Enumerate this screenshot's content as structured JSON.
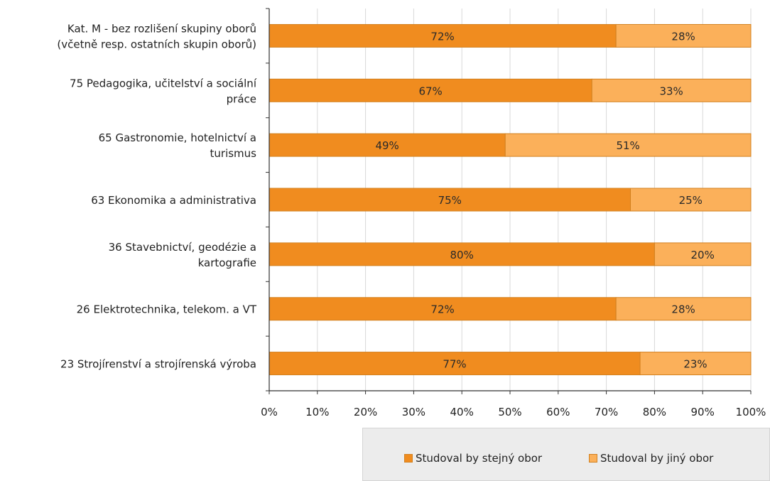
{
  "chart_data": {
    "type": "bar",
    "orientation": "horizontal",
    "stacked": true,
    "title": "",
    "categories": [
      [
        "Kat. M - bez rozlišení skupiny oborů",
        "(včetně resp. ostatních skupin oborů)"
      ],
      [
        "75 Pedagogika, učitelství a sociální",
        "práce"
      ],
      [
        "65 Gastronomie, hotelnictví a",
        "turismus"
      ],
      [
        "63 Ekonomika a administrativa"
      ],
      [
        "36 Stavebnictví, geodézie a",
        "kartografie"
      ],
      [
        "26 Elektrotechnika, telekom. a VT"
      ],
      [
        "23 Strojírenství a strojírenská výroba"
      ]
    ],
    "series": [
      {
        "name": "Studoval by stejný obor",
        "color": "#f08c1f",
        "values": [
          72,
          67,
          49,
          75,
          80,
          72,
          77
        ],
        "labels": [
          "72%",
          "67%",
          "49%",
          "75%",
          "80%",
          "72%",
          "77%"
        ]
      },
      {
        "name": "Studoval by jiný obor",
        "color": "#fbb05a",
        "values": [
          28,
          33,
          51,
          25,
          20,
          28,
          23
        ],
        "labels": [
          "28%",
          "33%",
          "51%",
          "25%",
          "20%",
          "28%",
          "23%"
        ]
      }
    ],
    "x_ticks": [
      "0%",
      "10%",
      "20%",
      "30%",
      "40%",
      "50%",
      "60%",
      "70%",
      "80%",
      "90%",
      "100%"
    ],
    "xlim": [
      0,
      100
    ],
    "grid": true,
    "legend_position": "bottom-right"
  }
}
